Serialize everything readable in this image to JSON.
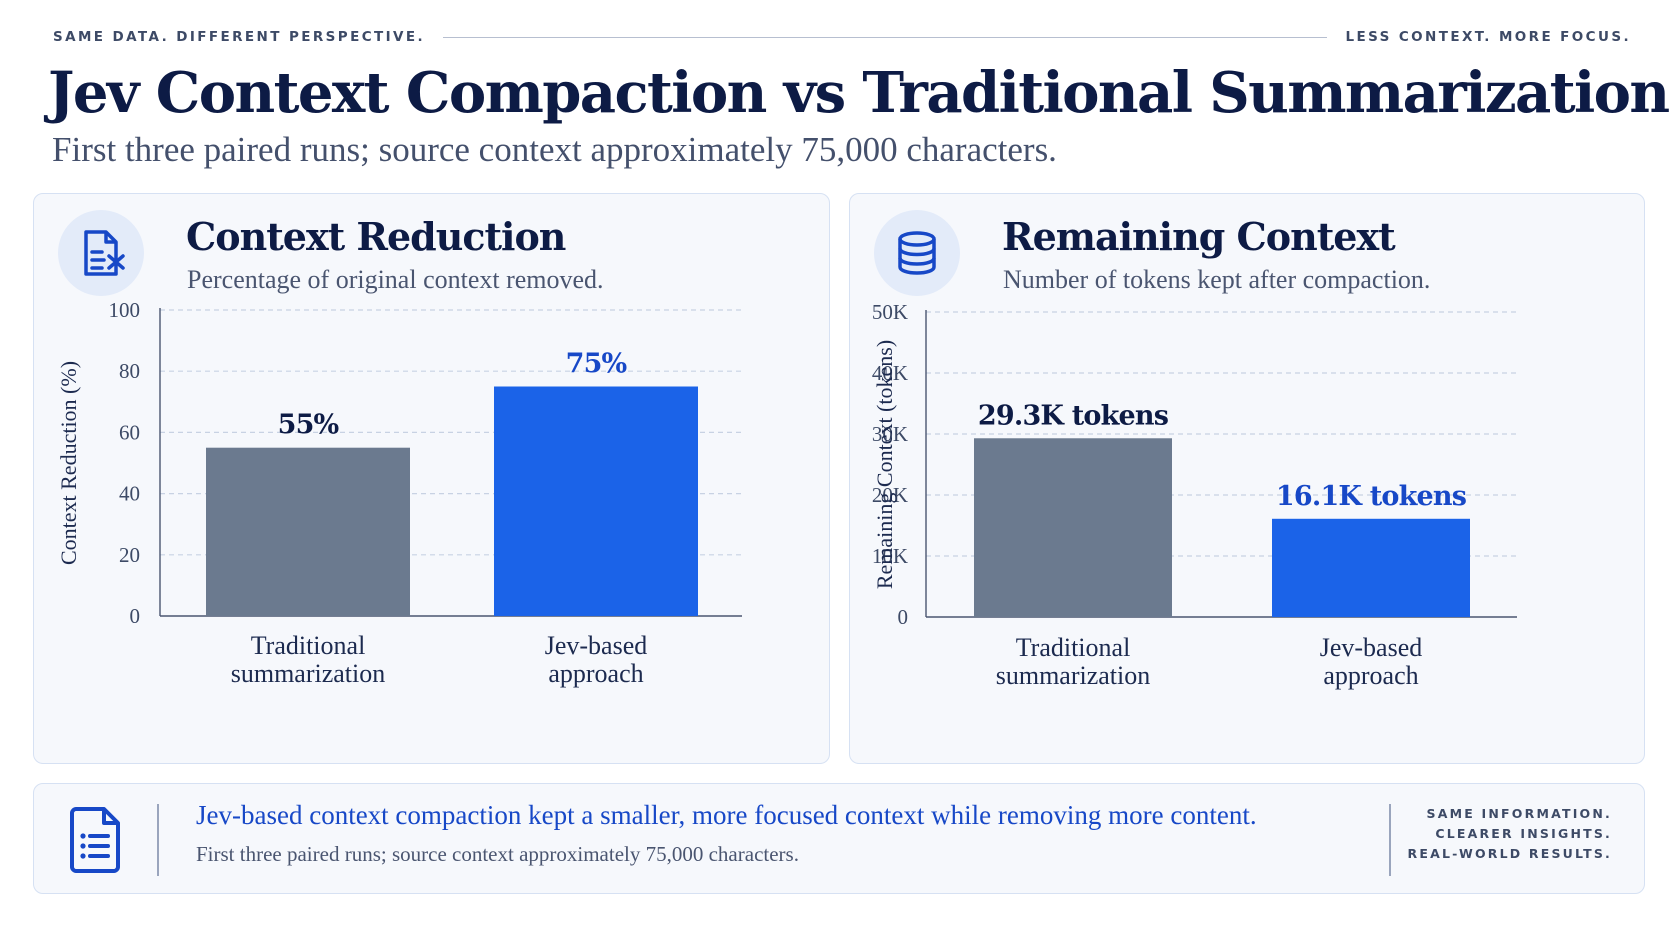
{
  "header": {
    "left_tagline": "SAME DATA. DIFFERENT PERSPECTIVE.",
    "right_tagline": "LESS CONTEXT. MORE FOCUS.",
    "title": "Jev Context Compaction vs Traditional Summarization",
    "subtitle": "First three paired runs; source context approximately 75,000 characters."
  },
  "colors": {
    "traditional": "#6b7a8f",
    "jev": "#1b63e8",
    "accent_text": "#1748c7",
    "grid": "#c8d2e3"
  },
  "panels": [
    {
      "title": "Context Reduction",
      "subtitle": "Percentage of original context removed.",
      "icon": "document-compress-icon"
    },
    {
      "title": "Remaining Context",
      "subtitle": "Number of tokens kept after compaction.",
      "icon": "database-icon"
    }
  ],
  "chart_data": [
    {
      "type": "bar",
      "categories": [
        "Traditional summarization",
        "Jev-based approach"
      ],
      "category_lines": [
        [
          "Traditional",
          "summarization"
        ],
        [
          "Jev-based",
          "approach"
        ]
      ],
      "values": [
        55,
        75
      ],
      "value_labels": [
        "55%",
        "75%"
      ],
      "ylabel": "Context Reduction (%)",
      "ylim": [
        0,
        100
      ],
      "yticks": [
        0,
        20,
        40,
        60,
        80,
        100
      ],
      "ytick_labels": [
        "0",
        "20",
        "40",
        "60",
        "80",
        "100"
      ],
      "grid": true
    },
    {
      "type": "bar",
      "categories": [
        "Traditional summarization",
        "Jev-based approach"
      ],
      "category_lines": [
        [
          "Traditional",
          "summarization"
        ],
        [
          "Jev-based",
          "approach"
        ]
      ],
      "values": [
        29300,
        16100
      ],
      "value_labels": [
        "29.3K tokens",
        "16.1K tokens"
      ],
      "ylabel": "Remaining Context (tokens)",
      "ylim": [
        0,
        50000
      ],
      "yticks": [
        0,
        10000,
        20000,
        30000,
        40000,
        50000
      ],
      "ytick_labels": [
        "0",
        "10K",
        "20K",
        "30K",
        "40K",
        "50K"
      ],
      "grid": true
    }
  ],
  "footer": {
    "icon": "checklist-document-icon",
    "main_text": "Jev-based context compaction kept a smaller, more focused context while removing more content.",
    "note": "First three paired runs; source context approximately 75,000 characters.",
    "tag_lines": [
      "SAME INFORMATION.",
      "CLEARER INSIGHTS.",
      "REAL-WORLD RESULTS."
    ]
  }
}
